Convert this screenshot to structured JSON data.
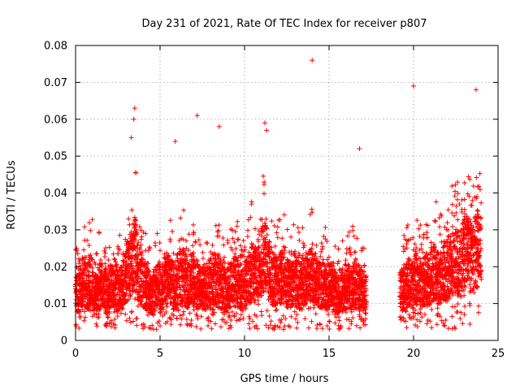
{
  "chart_data": {
    "type": "scatter",
    "title": "Day 231 of 2021, Rate Of TEC Index for receiver p807",
    "xlabel": "GPS time / hours",
    "ylabel": "ROTI / TECUs",
    "xlim": [
      0,
      25
    ],
    "ylim": [
      0,
      0.08
    ],
    "x_ticks": [
      "0",
      "5",
      "10",
      "15",
      "20",
      "25"
    ],
    "y_ticks": [
      "0",
      "0.01",
      "0.02",
      "0.03",
      "0.04",
      "0.05",
      "0.06",
      "0.07",
      "0.08"
    ],
    "grid": true,
    "marker": "plus",
    "color": "#ff0000",
    "data_gap_hours": [
      17.2,
      19.2
    ],
    "envelope_note_hours": [
      0,
      24
    ],
    "series": [
      {
        "x": [
          0.1,
          0.3,
          0.5,
          0.7,
          0.9,
          1.1,
          1.3,
          1.5,
          1.7,
          1.9,
          2.1,
          2.3,
          2.5,
          2.7,
          2.9,
          3.1,
          3.3,
          3.5,
          3.7,
          3.9,
          4.1,
          4.3,
          4.5,
          4.7,
          4.9,
          5.1,
          5.3,
          5.5,
          5.7,
          5.9,
          6.1,
          6.3,
          6.5,
          6.7,
          6.9,
          7.1,
          7.3,
          7.5,
          7.7,
          7.9,
          8.1,
          8.3,
          8.5,
          8.7,
          8.9,
          9.1,
          9.3,
          9.5,
          9.7,
          9.9,
          10.1,
          10.3,
          10.5,
          10.7,
          10.9,
          11.1,
          11.3,
          11.5,
          11.7,
          11.9,
          12.1,
          12.3,
          12.5,
          12.7,
          12.9,
          13.1,
          13.3,
          13.5,
          13.7,
          13.9,
          14.1,
          14.3,
          14.5,
          14.7,
          14.9,
          15.1,
          15.3,
          15.5,
          15.7,
          15.9,
          16.1,
          16.3,
          16.5,
          16.7,
          16.9,
          17.1,
          19.3,
          19.5,
          19.7,
          19.9,
          20.1,
          20.3,
          20.5,
          20.7,
          20.9,
          21.1,
          21.3,
          21.5,
          21.7,
          21.9,
          22.1,
          22.3,
          22.5,
          22.7,
          22.9,
          23.1,
          23.3,
          23.5,
          23.7,
          23.9,
          3.5,
          3.45,
          3.3,
          5.9,
          7.2,
          8.5,
          14.0,
          11.2,
          11.3,
          20.0,
          23.7,
          16.8
        ],
        "y": [
          0.012,
          0.013,
          0.015,
          0.014,
          0.016,
          0.013,
          0.012,
          0.014,
          0.013,
          0.012,
          0.014,
          0.015,
          0.013,
          0.014,
          0.016,
          0.018,
          0.02,
          0.022,
          0.018,
          0.016,
          0.014,
          0.013,
          0.012,
          0.013,
          0.014,
          0.013,
          0.015,
          0.016,
          0.015,
          0.014,
          0.016,
          0.017,
          0.015,
          0.014,
          0.016,
          0.015,
          0.014,
          0.013,
          0.014,
          0.015,
          0.014,
          0.016,
          0.015,
          0.014,
          0.013,
          0.014,
          0.015,
          0.016,
          0.014,
          0.013,
          0.015,
          0.016,
          0.018,
          0.017,
          0.02,
          0.022,
          0.021,
          0.018,
          0.016,
          0.015,
          0.016,
          0.017,
          0.015,
          0.014,
          0.016,
          0.015,
          0.014,
          0.015,
          0.016,
          0.017,
          0.016,
          0.015,
          0.014,
          0.015,
          0.013,
          0.014,
          0.013,
          0.012,
          0.013,
          0.012,
          0.014,
          0.013,
          0.015,
          0.014,
          0.013,
          0.012,
          0.013,
          0.014,
          0.015,
          0.014,
          0.016,
          0.015,
          0.014,
          0.016,
          0.015,
          0.017,
          0.018,
          0.016,
          0.017,
          0.018,
          0.019,
          0.02,
          0.021,
          0.02,
          0.022,
          0.023,
          0.022,
          0.021,
          0.024,
          0.023,
          0.063,
          0.06,
          0.055,
          0.054,
          0.061,
          0.058,
          0.076,
          0.059,
          0.057,
          0.069,
          0.068,
          0.052
        ]
      }
    ]
  }
}
